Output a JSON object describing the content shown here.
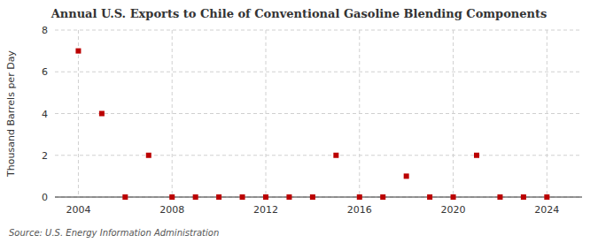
{
  "chart_data": {
    "type": "scatter",
    "title": "Annual U.S. Exports to Chile of Conventional Gasoline Blending Components",
    "ylabel": "Thousand Barrels per Day",
    "annotations": [
      "Source: U.S. Energy Information Administration"
    ],
    "x": [
      2004,
      2005,
      2006,
      2007,
      2008,
      2009,
      2010,
      2011,
      2012,
      2013,
      2014,
      2015,
      2016,
      2017,
      2018,
      2019,
      2020,
      2021,
      2022,
      2023,
      2024
    ],
    "values": [
      7,
      4,
      0,
      2,
      0,
      0,
      0,
      0,
      0,
      0,
      0,
      2,
      0,
      0,
      1,
      0,
      0,
      2,
      0,
      0,
      0
    ],
    "color": "#bb0000",
    "marker": "square",
    "xlim": [
      2003.0,
      2025.5
    ],
    "ylim": [
      0,
      8
    ],
    "xticks": [
      2004,
      2008,
      2012,
      2016,
      2020,
      2024
    ],
    "yticks": [
      0,
      2,
      4,
      6,
      8
    ],
    "grid": true
  }
}
